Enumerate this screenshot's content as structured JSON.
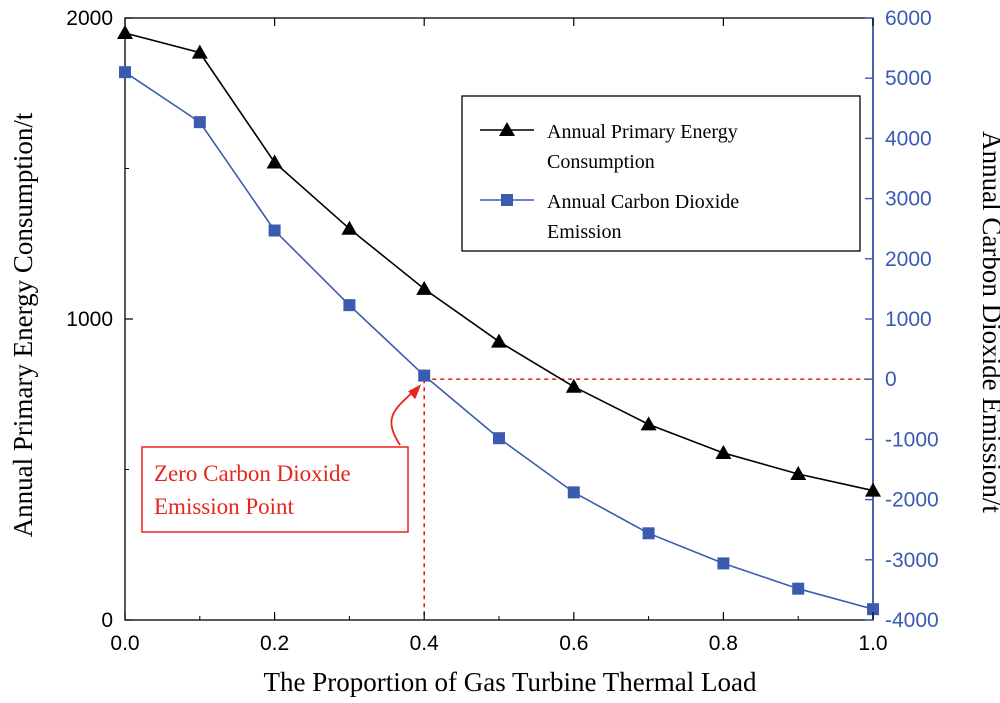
{
  "chart_data": {
    "type": "line",
    "xlabel": "The Proportion of Gas Turbine Thermal Load",
    "ylabel_left": "Annual Primary Energy Consumption/t",
    "ylabel_right": "Annual Carbon Dioxide Emission/t",
    "xlim": [
      0,
      1.0
    ],
    "ylim_left": [
      0,
      2000
    ],
    "ylim_right": [
      -4000,
      6000
    ],
    "x_ticks": [
      "0.0",
      "0.2",
      "0.4",
      "0.6",
      "0.8",
      "1.0"
    ],
    "x_tick_values": [
      0,
      0.2,
      0.4,
      0.6,
      0.8,
      1.0
    ],
    "y_left_ticks": [
      "0",
      "1000",
      "2000"
    ],
    "y_left_tick_values": [
      0,
      1000,
      2000
    ],
    "y_right_ticks": [
      "-4000",
      "-3000",
      "-2000",
      "-1000",
      "0",
      "1000",
      "2000",
      "3000",
      "4000",
      "5000",
      "6000"
    ],
    "y_right_tick_values": [
      -4000,
      -3000,
      -2000,
      -1000,
      0,
      1000,
      2000,
      3000,
      4000,
      5000,
      6000
    ],
    "x": [
      0.0,
      0.1,
      0.2,
      0.3,
      0.4,
      0.5,
      0.6,
      0.7,
      0.8,
      0.9,
      1.0
    ],
    "series": [
      {
        "name": "Annual Primary Energy Consumption",
        "axis": "left",
        "marker": "triangle",
        "color": "#000000",
        "values": [
          1950,
          1885,
          1520,
          1300,
          1100,
          925,
          775,
          650,
          555,
          485,
          430
        ]
      },
      {
        "name": "Annual Carbon Dioxide Emission",
        "axis": "right",
        "marker": "square",
        "color": "#3a5bb0",
        "values": [
          5100,
          4270,
          2470,
          1230,
          60,
          -980,
          -1880,
          -2560,
          -3060,
          -3480,
          -3820
        ]
      }
    ],
    "legend": {
      "position": "top-right",
      "entries": [
        [
          "Annual Primary Energy",
          "Consumption"
        ],
        [
          "Annual Carbon Dioxide",
          "Emission"
        ]
      ]
    },
    "annotation": {
      "lines": [
        "Zero Carbon Dioxide",
        "Emission Point"
      ],
      "color": "#e8251c",
      "target_x": 0.4,
      "target_y_right": 0
    },
    "grid": false,
    "colors": {
      "left_axis": "#000000",
      "right_axis": "#3a5bb0",
      "annotation": "#e8251c"
    }
  }
}
